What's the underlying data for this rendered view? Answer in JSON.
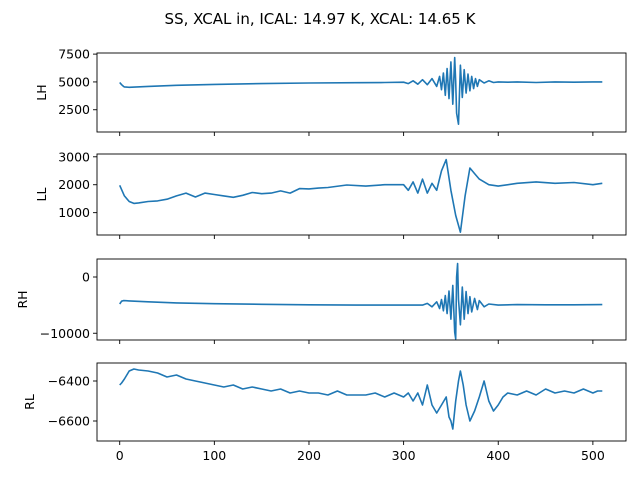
{
  "title": "SS, XCAL in, ICAL: 14.97 K, XCAL: 14.65 K",
  "chart_data": [
    {
      "type": "line",
      "ylabel": "LH",
      "xlim": [
        -24,
        535
      ],
      "ylim": [
        500,
        7600
      ],
      "yticks": [
        2500,
        5000,
        7500
      ],
      "ytick_labels": [
        "2500",
        "5000",
        "7500"
      ],
      "color": "#1f77b4",
      "series": [
        {
          "x": [
            0,
            2,
            4,
            5,
            10,
            30,
            60,
            100,
            150,
            200,
            250,
            280,
            300,
            305,
            310,
            315,
            320,
            325,
            330,
            335,
            338,
            340,
            342,
            344,
            346,
            348,
            350,
            352,
            354,
            355,
            356,
            358,
            360,
            362,
            364,
            366,
            368,
            370,
            372,
            374,
            376,
            378,
            380,
            385,
            390,
            395,
            400,
            410,
            420,
            440,
            460,
            480,
            500,
            510
          ],
          "y": [
            4950,
            4750,
            4600,
            4550,
            4520,
            4600,
            4700,
            4780,
            4850,
            4900,
            4930,
            4950,
            4980,
            4850,
            5100,
            4800,
            5200,
            4750,
            5300,
            4600,
            5500,
            4300,
            5800,
            3800,
            6200,
            3500,
            6800,
            3000,
            7200,
            5000,
            2200,
            1200,
            6500,
            3600,
            6100,
            4000,
            5700,
            4200,
            5500,
            4400,
            5300,
            4600,
            5200,
            4900,
            5100,
            4950,
            5000,
            4980,
            5000,
            4950,
            5000,
            4980,
            5000,
            5000
          ]
        }
      ]
    },
    {
      "type": "line",
      "ylabel": "LL",
      "xlim": [
        -24,
        535
      ],
      "ylim": [
        200,
        3100
      ],
      "yticks": [
        1000,
        2000,
        3000
      ],
      "ytick_labels": [
        "1000",
        "2000",
        "3000"
      ],
      "color": "#1f77b4",
      "series": [
        {
          "x": [
            0,
            5,
            10,
            15,
            20,
            30,
            40,
            50,
            60,
            70,
            80,
            90,
            100,
            110,
            120,
            130,
            140,
            150,
            160,
            170,
            180,
            190,
            200,
            210,
            220,
            240,
            260,
            280,
            300,
            305,
            310,
            315,
            320,
            325,
            330,
            335,
            340,
            345,
            350,
            355,
            360,
            365,
            370,
            375,
            380,
            390,
            400,
            420,
            440,
            460,
            480,
            500,
            510
          ],
          "y": [
            1980,
            1600,
            1400,
            1330,
            1350,
            1400,
            1420,
            1480,
            1600,
            1700,
            1560,
            1700,
            1650,
            1600,
            1550,
            1620,
            1720,
            1680,
            1700,
            1780,
            1700,
            1860,
            1850,
            1880,
            1900,
            1990,
            1950,
            2000,
            2000,
            1800,
            2100,
            1700,
            2200,
            1700,
            2050,
            1800,
            2500,
            2900,
            1800,
            900,
            300,
            1600,
            2600,
            2400,
            2200,
            2000,
            1950,
            2050,
            2100,
            2050,
            2080,
            2000,
            2050
          ]
        }
      ]
    },
    {
      "type": "line",
      "ylabel": "RH",
      "xlim": [
        -24,
        535
      ],
      "ylim": [
        -11200,
        3200
      ],
      "yticks": [
        -10000,
        0
      ],
      "ytick_labels": [
        "−10000",
        "0"
      ],
      "color": "#1f77b4",
      "series": [
        {
          "x": [
            0,
            2,
            4,
            10,
            30,
            60,
            100,
            150,
            200,
            250,
            300,
            320,
            325,
            330,
            335,
            338,
            340,
            342,
            344,
            346,
            348,
            350,
            352,
            354,
            355,
            356,
            357,
            358,
            360,
            362,
            364,
            366,
            368,
            370,
            372,
            375,
            378,
            380,
            385,
            390,
            400,
            420,
            450,
            480,
            510
          ],
          "y": [
            -4800,
            -4300,
            -4200,
            -4250,
            -4400,
            -4600,
            -4750,
            -4850,
            -4950,
            -5000,
            -5000,
            -5000,
            -4700,
            -5300,
            -4400,
            -5600,
            -4000,
            -6000,
            -3300,
            -6500,
            -2500,
            -7500,
            -1500,
            -9800,
            -11000,
            0,
            2400,
            -4000,
            -8500,
            -1800,
            -7500,
            -2600,
            -6500,
            -3500,
            -6200,
            -3800,
            -5800,
            -4200,
            -5300,
            -4800,
            -5000,
            -4900,
            -4950,
            -4950,
            -4900
          ]
        }
      ]
    },
    {
      "type": "line",
      "ylabel": "RL",
      "xlim": [
        -24,
        535
      ],
      "ylim": [
        -6700,
        -6310
      ],
      "yticks": [
        -6600,
        -6400
      ],
      "ytick_labels": [
        "−6600",
        "−6400"
      ],
      "color": "#1f77b4",
      "series": [
        {
          "x": [
            0,
            2,
            5,
            10,
            15,
            20,
            30,
            40,
            50,
            60,
            70,
            80,
            90,
            100,
            110,
            120,
            130,
            140,
            150,
            160,
            170,
            180,
            190,
            200,
            210,
            220,
            230,
            240,
            250,
            260,
            270,
            280,
            290,
            300,
            305,
            310,
            315,
            320,
            325,
            330,
            335,
            340,
            345,
            348,
            350,
            352,
            355,
            358,
            360,
            363,
            366,
            370,
            375,
            380,
            385,
            390,
            395,
            400,
            405,
            410,
            420,
            430,
            440,
            450,
            460,
            470,
            480,
            490,
            500,
            505,
            510
          ],
          "y": [
            -6420,
            -6410,
            -6390,
            -6350,
            -6340,
            -6345,
            -6350,
            -6360,
            -6380,
            -6370,
            -6390,
            -6400,
            -6410,
            -6420,
            -6430,
            -6420,
            -6440,
            -6430,
            -6440,
            -6450,
            -6440,
            -6460,
            -6450,
            -6460,
            -6460,
            -6470,
            -6450,
            -6470,
            -6470,
            -6470,
            -6460,
            -6480,
            -6460,
            -6480,
            -6460,
            -6500,
            -6460,
            -6520,
            -6420,
            -6520,
            -6560,
            -6520,
            -6480,
            -6580,
            -6600,
            -6640,
            -6500,
            -6400,
            -6350,
            -6420,
            -6520,
            -6600,
            -6550,
            -6480,
            -6400,
            -6500,
            -6550,
            -6520,
            -6480,
            -6460,
            -6470,
            -6450,
            -6470,
            -6440,
            -6460,
            -6450,
            -6460,
            -6440,
            -6460,
            -6450,
            -6450
          ]
        }
      ]
    }
  ],
  "xticks": [
    0,
    100,
    200,
    300,
    400,
    500
  ],
  "xtick_labels": [
    "0",
    "100",
    "200",
    "300",
    "400",
    "500"
  ]
}
